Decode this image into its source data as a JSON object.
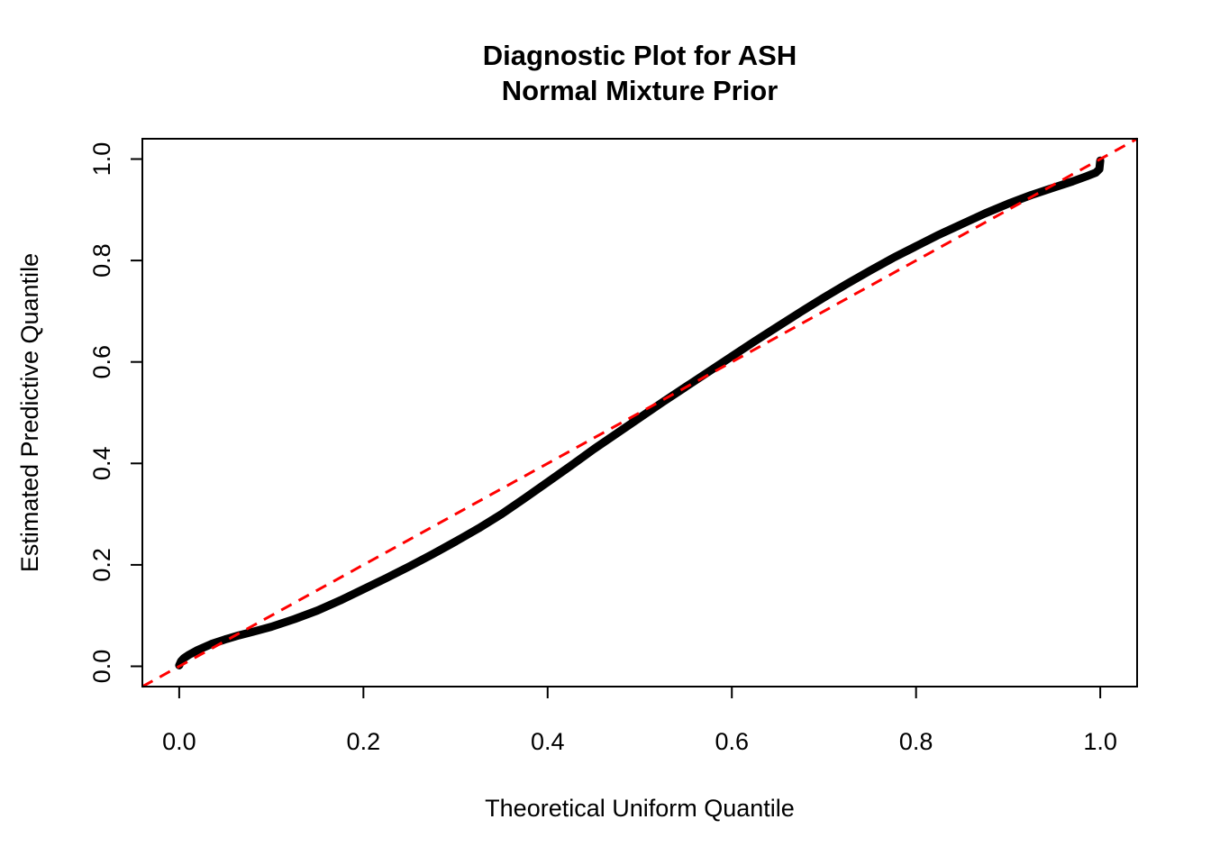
{
  "chart_data": {
    "type": "line",
    "title_lines": [
      "Diagnostic Plot for ASH",
      "Normal Mixture Prior"
    ],
    "xlabel": "Theoretical Uniform Quantile",
    "ylabel": "Estimated Predictive Quantile",
    "xlim": [
      -0.04,
      1.04
    ],
    "ylim": [
      -0.04,
      1.04
    ],
    "x_ticks": [
      0.0,
      0.2,
      0.4,
      0.6,
      0.8,
      1.0
    ],
    "y_ticks": [
      0.0,
      0.2,
      0.4,
      0.6,
      0.8,
      1.0
    ],
    "x_tick_labels": [
      "0.0",
      "0.2",
      "0.4",
      "0.6",
      "0.8",
      "1.0"
    ],
    "y_tick_labels": [
      "0.0",
      "0.2",
      "0.4",
      "0.6",
      "0.8",
      "1.0"
    ],
    "grid": false,
    "legend": "none",
    "colors": {
      "curve": "#000000",
      "reference": "#FF0000",
      "box": "#000000",
      "background": "#FFFFFF"
    },
    "series": [
      {
        "name": "estimated-vs-theoretical-quantile-curve",
        "color": "#000000",
        "width": 9,
        "dash": null,
        "points": [
          [
            0.0,
            0.002
          ],
          [
            0.002,
            0.01
          ],
          [
            0.005,
            0.016
          ],
          [
            0.01,
            0.022
          ],
          [
            0.02,
            0.032
          ],
          [
            0.035,
            0.044
          ],
          [
            0.05,
            0.053
          ],
          [
            0.065,
            0.061
          ],
          [
            0.08,
            0.068
          ],
          [
            0.1,
            0.078
          ],
          [
            0.125,
            0.093
          ],
          [
            0.15,
            0.11
          ],
          [
            0.175,
            0.13
          ],
          [
            0.2,
            0.152
          ],
          [
            0.225,
            0.174
          ],
          [
            0.25,
            0.197
          ],
          [
            0.275,
            0.221
          ],
          [
            0.3,
            0.246
          ],
          [
            0.325,
            0.272
          ],
          [
            0.35,
            0.3
          ],
          [
            0.375,
            0.331
          ],
          [
            0.4,
            0.363
          ],
          [
            0.425,
            0.395
          ],
          [
            0.45,
            0.428
          ],
          [
            0.475,
            0.459
          ],
          [
            0.5,
            0.49
          ],
          [
            0.525,
            0.521
          ],
          [
            0.55,
            0.551
          ],
          [
            0.575,
            0.581
          ],
          [
            0.6,
            0.611
          ],
          [
            0.625,
            0.641
          ],
          [
            0.65,
            0.67
          ],
          [
            0.675,
            0.699
          ],
          [
            0.7,
            0.727
          ],
          [
            0.725,
            0.754
          ],
          [
            0.75,
            0.78
          ],
          [
            0.775,
            0.805
          ],
          [
            0.8,
            0.828
          ],
          [
            0.825,
            0.851
          ],
          [
            0.85,
            0.872
          ],
          [
            0.875,
            0.893
          ],
          [
            0.9,
            0.912
          ],
          [
            0.925,
            0.929
          ],
          [
            0.95,
            0.944
          ],
          [
            0.97,
            0.956
          ],
          [
            0.985,
            0.966
          ],
          [
            0.995,
            0.973
          ],
          [
            0.999,
            0.98
          ],
          [
            1.0,
            0.997
          ]
        ]
      },
      {
        "name": "diagonal-reference-line",
        "color": "#FF0000",
        "width": 3,
        "dash": "13 9",
        "points": [
          [
            -0.04,
            -0.04
          ],
          [
            1.04,
            1.04
          ]
        ]
      }
    ]
  }
}
